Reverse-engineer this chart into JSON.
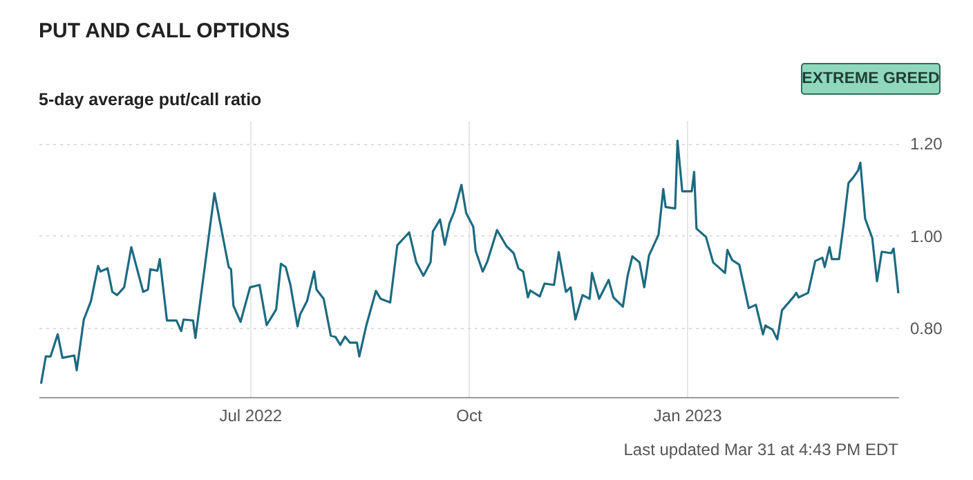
{
  "chart_data": {
    "type": "line",
    "title": "PUT AND CALL OPTIONS",
    "subtitle": "5-day average put/call ratio",
    "annotations": [
      "EXTREME GREED",
      "Last updated Mar 31 at 4:43 PM EDT"
    ],
    "x": [
      "2022-04-04",
      "2022-04-06",
      "2022-04-08",
      "2022-04-11",
      "2022-04-13",
      "2022-04-18",
      "2022-04-19",
      "2022-04-22",
      "2022-04-25",
      "2022-04-28",
      "2022-04-29",
      "2022-05-02",
      "2022-05-04",
      "2022-05-06",
      "2022-05-09",
      "2022-05-12",
      "2022-05-17",
      "2022-05-19",
      "2022-05-20",
      "2022-05-23",
      "2022-05-24",
      "2022-05-27",
      "2022-05-31",
      "2022-06-02",
      "2022-06-03",
      "2022-06-07",
      "2022-06-08",
      "2022-06-16",
      "2022-06-22",
      "2022-06-23",
      "2022-06-24",
      "2022-06-27",
      "2022-07-01",
      "2022-07-05",
      "2022-07-08",
      "2022-07-12",
      "2022-07-14",
      "2022-07-16",
      "2022-07-18",
      "2022-07-21",
      "2022-07-22",
      "2022-07-25",
      "2022-07-28",
      "2022-07-29",
      "2022-08-01",
      "2022-08-04",
      "2022-08-06",
      "2022-08-08",
      "2022-08-10",
      "2022-08-12",
      "2022-08-15",
      "2022-08-16",
      "2022-08-19",
      "2022-08-23",
      "2022-08-25",
      "2022-08-29",
      "2022-09-01",
      "2022-09-06",
      "2022-09-09",
      "2022-09-12",
      "2022-09-15",
      "2022-09-16",
      "2022-09-19",
      "2022-09-21",
      "2022-09-23",
      "2022-09-25",
      "2022-09-28",
      "2022-09-30",
      "2022-10-03",
      "2022-10-04",
      "2022-10-07",
      "2022-10-09",
      "2022-10-13",
      "2022-10-17",
      "2022-10-20",
      "2022-10-22",
      "2022-10-24",
      "2022-10-26",
      "2022-10-27",
      "2022-10-31",
      "2022-11-02",
      "2022-11-06",
      "2022-11-08",
      "2022-11-11",
      "2022-11-13",
      "2022-11-15",
      "2022-11-18",
      "2022-11-21",
      "2022-11-22",
      "2022-11-25",
      "2022-11-29",
      "2022-12-01",
      "2022-12-05",
      "2022-12-07",
      "2022-12-09",
      "2022-12-12",
      "2022-12-14",
      "2022-12-16",
      "2022-12-20",
      "2022-12-22",
      "2022-12-23",
      "2022-12-27",
      "2022-12-28",
      "2022-12-30",
      "2023-01-03",
      "2023-01-04",
      "2023-01-05",
      "2023-01-09",
      "2023-01-12",
      "2023-01-17",
      "2023-01-18",
      "2023-01-20",
      "2023-01-23",
      "2023-01-27",
      "2023-01-30",
      "2023-02-02",
      "2023-02-03",
      "2023-02-06",
      "2023-02-08",
      "2023-02-10",
      "2023-02-15",
      "2023-02-16",
      "2023-02-17",
      "2023-02-21",
      "2023-02-24",
      "2023-02-27",
      "2023-02-28",
      "2023-03-02",
      "2023-03-03",
      "2023-03-06",
      "2023-03-08",
      "2023-03-10",
      "2023-03-12",
      "2023-03-14",
      "2023-03-15",
      "2023-03-17",
      "2023-03-20",
      "2023-03-22",
      "2023-03-24",
      "2023-03-28",
      "2023-03-29",
      "2023-03-31"
    ],
    "series": [
      {
        "color": "#1d6a80",
        "values": [
          0.679,
          0.738,
          0.738,
          0.786,
          0.735,
          0.74,
          0.708,
          0.818,
          0.858,
          0.934,
          0.922,
          0.929,
          0.878,
          0.871,
          0.888,
          0.975,
          0.878,
          0.883,
          0.927,
          0.924,
          0.949,
          0.816,
          0.816,
          0.793,
          0.818,
          0.816,
          0.778,
          1.092,
          0.932,
          0.927,
          0.848,
          0.813,
          0.888,
          0.893,
          0.806,
          0.84,
          0.939,
          0.932,
          0.893,
          0.803,
          0.828,
          0.858,
          0.922,
          0.883,
          0.863,
          0.783,
          0.78,
          0.763,
          0.781,
          0.768,
          0.768,
          0.738,
          0.806,
          0.88,
          0.863,
          0.855,
          0.979,
          1.007,
          0.942,
          0.913,
          0.942,
          1.009,
          1.035,
          0.98,
          1.027,
          1.052,
          1.11,
          1.049,
          1.019,
          0.967,
          0.922,
          0.945,
          1.012,
          0.977,
          0.962,
          0.929,
          0.922,
          0.866,
          0.881,
          0.868,
          0.896,
          0.893,
          0.964,
          0.878,
          0.888,
          0.818,
          0.871,
          0.863,
          0.919,
          0.863,
          0.904,
          0.866,
          0.846,
          0.913,
          0.955,
          0.942,
          0.888,
          0.957,
          1.002,
          1.101,
          1.062,
          1.059,
          1.206,
          1.096,
          1.096,
          1.138,
          1.015,
          0.997,
          0.942,
          0.919,
          0.969,
          0.947,
          0.937,
          0.843,
          0.85,
          0.786,
          0.805,
          0.796,
          0.775,
          0.838,
          0.868,
          0.876,
          0.866,
          0.876,
          0.945,
          0.952,
          0.932,
          0.975,
          0.949,
          0.949,
          1.027,
          1.114,
          1.126,
          1.141,
          1.158,
          1.037,
          0.995,
          0.901,
          0.965,
          0.962,
          0.972,
          0.875
        ]
      }
    ],
    "xlim": [
      "2022-04-03",
      "2023-03-31"
    ],
    "xticks": [
      {
        "value": "2022-07-01",
        "label": "Jul 2022"
      },
      {
        "value": "2022-10-01",
        "label": "Oct"
      },
      {
        "value": "2023-01-01",
        "label": "Jan 2023"
      }
    ],
    "ylim": [
      0.65,
      1.25
    ],
    "yticks": [
      {
        "value": 0.8,
        "label": "0.80"
      },
      {
        "value": 1.0,
        "label": "1.00"
      },
      {
        "value": 1.2,
        "label": "1.20"
      }
    ],
    "grid": true,
    "line_style": "solid"
  }
}
